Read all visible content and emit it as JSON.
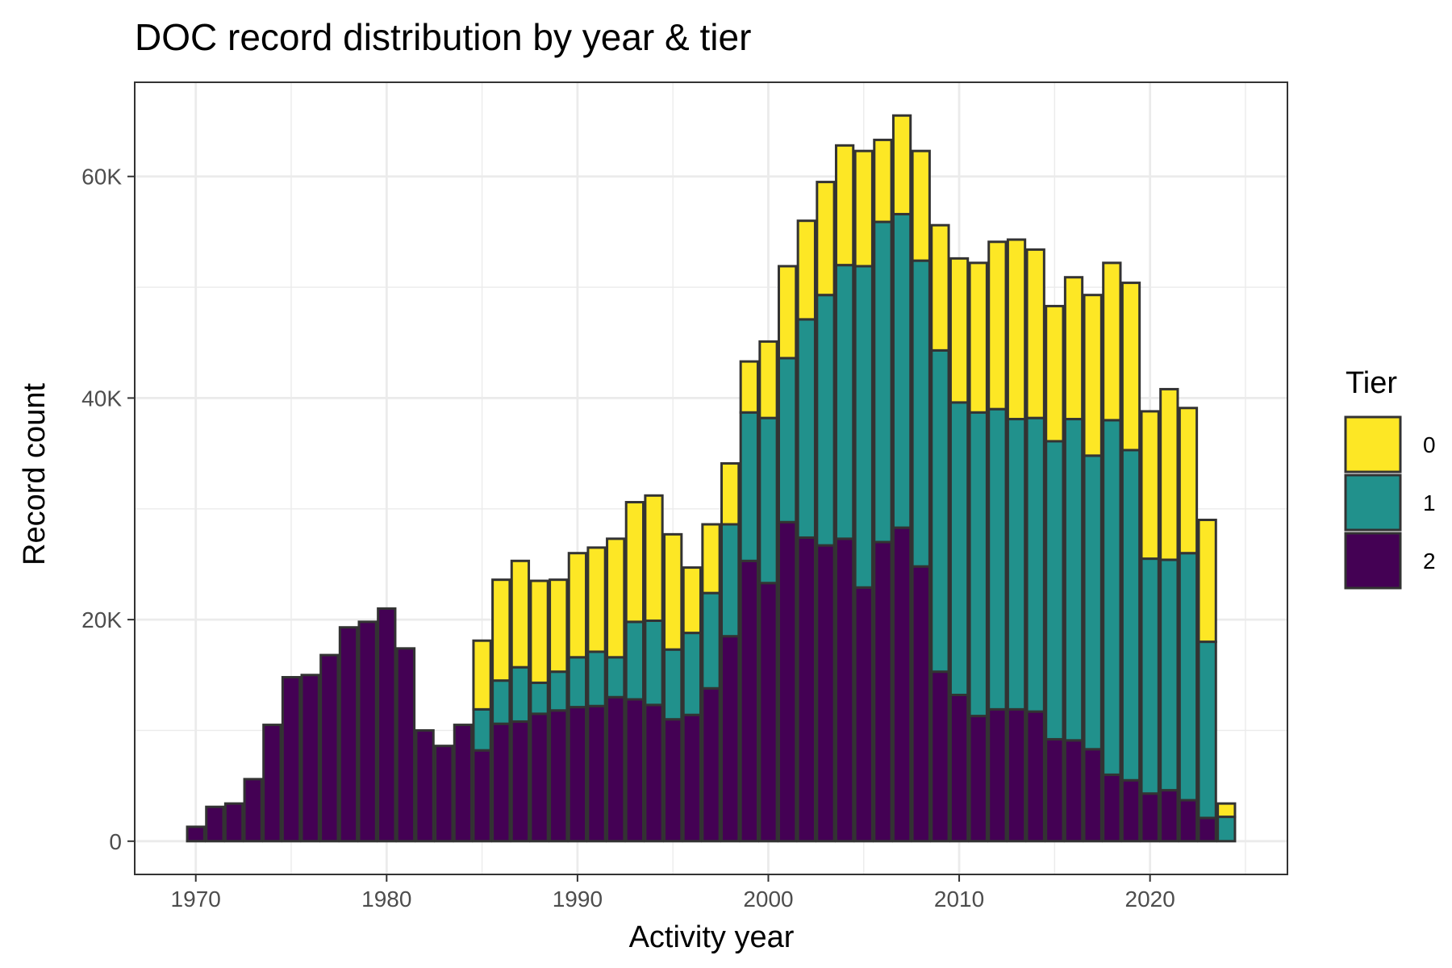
{
  "chart_data": {
    "type": "bar",
    "stacked": true,
    "title": "DOC record distribution by year & tier",
    "xlabel": "Activity year",
    "ylabel": "Record count",
    "xlim": [
      1966.8,
      2027.2
    ],
    "ylim": [
      -3000,
      68500
    ],
    "xticks": [
      1970,
      1980,
      1990,
      2000,
      2010,
      2020
    ],
    "yticks": [
      0,
      20000,
      40000,
      60000
    ],
    "ytick_labels": [
      "0",
      "20K",
      "40K",
      "60K"
    ],
    "grid": true,
    "legend": {
      "title": "Tier",
      "position": "right"
    },
    "colors": {
      "0": "#FDE725",
      "1": "#21918C",
      "2": "#440154",
      "outline": "#333333",
      "grid": "#EBEBEB",
      "panel_border": "#333333"
    },
    "x": [
      1970,
      1971,
      1972,
      1973,
      1974,
      1975,
      1976,
      1977,
      1978,
      1979,
      1980,
      1981,
      1982,
      1983,
      1984,
      1985,
      1986,
      1987,
      1988,
      1989,
      1990,
      1991,
      1992,
      1993,
      1994,
      1995,
      1996,
      1997,
      1998,
      1999,
      2000,
      2001,
      2002,
      2003,
      2004,
      2005,
      2006,
      2007,
      2008,
      2009,
      2010,
      2011,
      2012,
      2013,
      2014,
      2015,
      2016,
      2017,
      2018,
      2019,
      2020,
      2021,
      2022,
      2023,
      2024
    ],
    "series": [
      {
        "name": "2",
        "values": [
          1300,
          3100,
          3400,
          5600,
          10500,
          14800,
          15000,
          16800,
          19300,
          19800,
          21000,
          17400,
          10000,
          8600,
          10500,
          8200,
          10600,
          10800,
          11500,
          11800,
          12100,
          12200,
          13000,
          12800,
          12300,
          11000,
          11400,
          13800,
          18500,
          25300,
          23300,
          28800,
          27400,
          26700,
          27300,
          22900,
          27000,
          28300,
          24800,
          15300,
          13200,
          11300,
          11900,
          11900,
          11700,
          9200,
          9100,
          8300,
          6000,
          5500,
          4300,
          4600,
          3700,
          2100,
          0
        ]
      },
      {
        "name": "1",
        "values": [
          0,
          0,
          0,
          0,
          0,
          0,
          0,
          0,
          0,
          0,
          0,
          0,
          0,
          0,
          0,
          3700,
          3900,
          4900,
          2800,
          3500,
          4500,
          4900,
          3600,
          7000,
          7600,
          6300,
          7400,
          8600,
          10100,
          13400,
          14900,
          14800,
          19700,
          22600,
          24700,
          29000,
          28900,
          28300,
          27600,
          29000,
          26400,
          27400,
          27100,
          26200,
          26500,
          26900,
          29000,
          26500,
          32000,
          29800,
          21200,
          20800,
          22300,
          15900,
          2200
        ]
      },
      {
        "name": "0",
        "values": [
          0,
          0,
          0,
          0,
          0,
          0,
          0,
          0,
          0,
          0,
          0,
          0,
          0,
          0,
          0,
          6200,
          9100,
          9600,
          9200,
          8300,
          9400,
          9400,
          10700,
          10800,
          11300,
          10400,
          5900,
          6200,
          5500,
          4600,
          6900,
          8300,
          8900,
          10200,
          10800,
          10400,
          7400,
          8900,
          9900,
          11300,
          13000,
          13500,
          15100,
          16200,
          15200,
          12200,
          12800,
          14500,
          14200,
          15100,
          13300,
          15400,
          13100,
          11000,
          1200
        ]
      }
    ]
  }
}
